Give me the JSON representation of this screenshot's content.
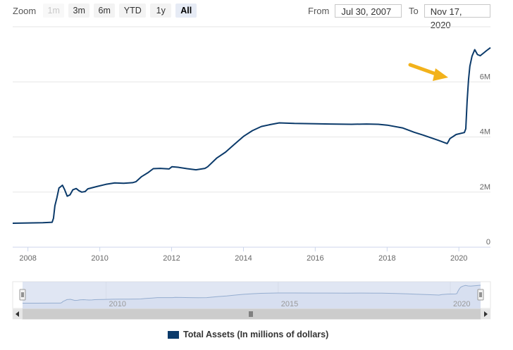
{
  "zoom": {
    "label": "Zoom",
    "buttons": [
      {
        "label": "1m",
        "state": "disabled"
      },
      {
        "label": "3m",
        "state": "normal"
      },
      {
        "label": "6m",
        "state": "normal"
      },
      {
        "label": "YTD",
        "state": "normal"
      },
      {
        "label": "1y",
        "state": "normal"
      },
      {
        "label": "All",
        "state": "active"
      }
    ]
  },
  "range": {
    "from_label": "From",
    "from_value": "Jul 30, 2007",
    "to_label": "To",
    "to_value": "Nov 17, 2020"
  },
  "colors": {
    "series": "#0b3a6a",
    "navigator_mask": "#ccd6eb",
    "annotation_arrow": "#f2b21b"
  },
  "annotation": {
    "type": "arrow",
    "color": "#f2b21b",
    "points_to": "2020 surge"
  },
  "chart_data": {
    "type": "line",
    "x_axis": {
      "type": "datetime",
      "range": [
        "2007-07-30",
        "2020-11-17"
      ],
      "tick_labels": [
        "2008",
        "2010",
        "2012",
        "2014",
        "2016",
        "2018",
        "2020"
      ]
    },
    "y_axis": {
      "range": [
        0,
        8000000
      ],
      "tick_labels": [
        "0",
        "2M",
        "4M",
        "6M"
      ],
      "position": "right"
    },
    "grid": "horizontal",
    "legend": {
      "placement": "bottom-center"
    },
    "navigator": {
      "tick_labels": [
        "2010",
        "2015",
        "2020"
      ]
    },
    "series": [
      {
        "name": "Total Assets (In millions of dollars)",
        "points": [
          [
            "2007-07-30",
            870000
          ],
          [
            "2008-01-01",
            880000
          ],
          [
            "2008-06-01",
            890000
          ],
          [
            "2008-09-03",
            905000
          ],
          [
            "2008-09-17",
            1050000
          ],
          [
            "2008-10-01",
            1500000
          ],
          [
            "2008-10-22",
            1800000
          ],
          [
            "2008-11-12",
            2150000
          ],
          [
            "2008-12-01",
            2200000
          ],
          [
            "2008-12-17",
            2250000
          ],
          [
            "2009-01-07",
            2100000
          ],
          [
            "2009-02-04",
            1850000
          ],
          [
            "2009-03-04",
            1900000
          ],
          [
            "2009-04-01",
            2080000
          ],
          [
            "2009-05-06",
            2130000
          ],
          [
            "2009-06-03",
            2050000
          ],
          [
            "2009-07-01",
            2000000
          ],
          [
            "2009-08-05",
            2020000
          ],
          [
            "2009-09-02",
            2120000
          ],
          [
            "2009-10-07",
            2150000
          ],
          [
            "2009-12-02",
            2200000
          ],
          [
            "2010-03-03",
            2280000
          ],
          [
            "2010-06-02",
            2330000
          ],
          [
            "2010-09-01",
            2320000
          ],
          [
            "2010-12-01",
            2340000
          ],
          [
            "2011-01-05",
            2380000
          ],
          [
            "2011-03-02",
            2560000
          ],
          [
            "2011-05-04",
            2700000
          ],
          [
            "2011-06-29",
            2850000
          ],
          [
            "2011-09-07",
            2860000
          ],
          [
            "2011-12-07",
            2840000
          ],
          [
            "2012-01-04",
            2920000
          ],
          [
            "2012-03-07",
            2900000
          ],
          [
            "2012-06-06",
            2850000
          ],
          [
            "2012-09-05",
            2810000
          ],
          [
            "2012-12-05",
            2860000
          ],
          [
            "2013-01-02",
            2920000
          ],
          [
            "2013-04-03",
            3230000
          ],
          [
            "2013-07-03",
            3450000
          ],
          [
            "2013-10-02",
            3740000
          ],
          [
            "2014-01-01",
            4020000
          ],
          [
            "2014-04-02",
            4230000
          ],
          [
            "2014-07-02",
            4380000
          ],
          [
            "2014-10-01",
            4450000
          ],
          [
            "2014-12-31",
            4510000
          ],
          [
            "2015-06-03",
            4490000
          ],
          [
            "2016-01-06",
            4480000
          ],
          [
            "2016-06-01",
            4470000
          ],
          [
            "2017-01-04",
            4460000
          ],
          [
            "2017-06-07",
            4470000
          ],
          [
            "2017-10-04",
            4460000
          ],
          [
            "2018-01-03",
            4430000
          ],
          [
            "2018-06-06",
            4330000
          ],
          [
            "2018-10-03",
            4170000
          ],
          [
            "2019-01-02",
            4070000
          ],
          [
            "2019-06-05",
            3880000
          ],
          [
            "2019-09-04",
            3760000
          ],
          [
            "2019-09-18",
            3850000
          ],
          [
            "2019-10-02",
            3940000
          ],
          [
            "2019-12-04",
            4090000
          ],
          [
            "2020-02-26",
            4160000
          ],
          [
            "2020-03-11",
            4300000
          ],
          [
            "2020-03-25",
            5300000
          ],
          [
            "2020-04-08",
            6080000
          ],
          [
            "2020-04-22",
            6570000
          ],
          [
            "2020-05-13",
            6930000
          ],
          [
            "2020-06-10",
            7170000
          ],
          [
            "2020-07-08",
            6990000
          ],
          [
            "2020-08-05",
            6950000
          ],
          [
            "2020-09-02",
            7030000
          ],
          [
            "2020-10-07",
            7130000
          ],
          [
            "2020-11-17",
            7240000
          ]
        ]
      }
    ]
  }
}
